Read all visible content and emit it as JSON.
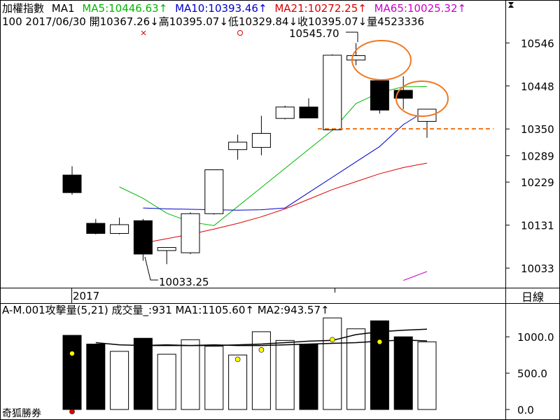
{
  "price_header": {
    "name": "加權指數",
    "ma_mode": "MA1",
    "items": [
      {
        "label": "MA5:10446.63",
        "arrow": "↑",
        "color": "#00b800"
      },
      {
        "label": "MA10:10393.46",
        "arrow": "↑",
        "color": "#0000cc"
      },
      {
        "label": "MA21:10272.25",
        "arrow": "↑",
        "color": "#dd0000"
      },
      {
        "label": "MA65:10025.32",
        "arrow": "↑",
        "color": "#cc00cc"
      }
    ],
    "scroll_icon": "scroll-arrows-icon"
  },
  "info_line": {
    "period": "100",
    "date": "2017/06/30",
    "segments": [
      {
        "label": "開",
        "value": "10367.26",
        "arrow": "↓"
      },
      {
        "label": "高",
        "value": "10395.07",
        "arrow": "↓"
      },
      {
        "label": "低",
        "value": "10329.84",
        "arrow": "↓"
      },
      {
        "label": "收",
        "value": "10395.07",
        "arrow": "↓"
      },
      {
        "label": "量",
        "value": "4523336",
        "arrow": ""
      }
    ]
  },
  "price_axis": {
    "ticks": [
      "10546",
      "10448",
      "10350",
      "10289",
      "10229",
      "10131",
      "10033"
    ],
    "values": [
      10546,
      10448,
      10350,
      10289,
      10229,
      10131,
      10033
    ]
  },
  "annotations": {
    "high_label": "10545.70",
    "low_label": "10033.25",
    "year_label": "2017",
    "period_label": "日線"
  },
  "markers": {
    "cross_icon": "cross-marker-icon",
    "circle_icon": "circle-marker-icon"
  },
  "volume_header": {
    "text": "A-M.001攻擊量(5,21) 成交量_:931",
    "items": [
      {
        "label": "MA1:1105.60",
        "arrow": "↑"
      },
      {
        "label": "MA2:943.57",
        "arrow": "↑"
      }
    ]
  },
  "volume_axis": {
    "ticks": [
      "1000.0",
      "500.0",
      "0.0"
    ],
    "values": [
      1000,
      500,
      0
    ]
  },
  "watermark": "奇狐勝券",
  "colors": {
    "ma5": "#00b800",
    "ma10": "#0000cc",
    "ma21": "#dd0000",
    "ma65": "#cc00cc",
    "highlight": "#f07820",
    "up_candle": "#ffffff",
    "down_candle": "#000000"
  },
  "chart_data": {
    "type": "candlestick",
    "price_range": [
      9990,
      10580
    ],
    "volume_range": [
      0,
      1300
    ],
    "candles": [
      {
        "o": 10205,
        "h": 10265,
        "l": 10200,
        "c": 10245,
        "down": true,
        "vol": 1020
      },
      {
        "o": 10135,
        "h": 10145,
        "l": 10110,
        "c": 10112,
        "down": true,
        "vol": 900
      },
      {
        "o": 10112,
        "h": 10148,
        "l": 10110,
        "c": 10132,
        "down": false,
        "vol": 800
      },
      {
        "o": 10141,
        "h": 10145,
        "l": 10050,
        "c": 10065,
        "down": true,
        "vol": 980
      },
      {
        "o": 10073,
        "h": 10080,
        "l": 10042,
        "c": 10080,
        "down": false,
        "vol": 760
      },
      {
        "o": 10068,
        "h": 10160,
        "l": 10065,
        "c": 10157,
        "down": false,
        "vol": 960
      },
      {
        "o": 10157,
        "h": 10258,
        "l": 10155,
        "c": 10257,
        "down": false,
        "vol": 870
      },
      {
        "o": 10303,
        "h": 10337,
        "l": 10280,
        "c": 10320,
        "down": false,
        "vol": 750
      },
      {
        "o": 10308,
        "h": 10380,
        "l": 10290,
        "c": 10340,
        "down": false,
        "vol": 1070
      },
      {
        "o": 10374,
        "h": 10403,
        "l": 10372,
        "c": 10400,
        "down": false,
        "vol": 950
      },
      {
        "o": 10400,
        "h": 10420,
        "l": 10375,
        "c": 10375,
        "down": true,
        "vol": 900
      },
      {
        "o": 10348,
        "h": 10520,
        "l": 10348,
        "c": 10518,
        "down": false,
        "vol": 1260
      },
      {
        "o": 10507,
        "h": 10545.7,
        "l": 10495,
        "c": 10517,
        "down": false,
        "vol": 1110
      },
      {
        "o": 10460,
        "h": 10460,
        "l": 10385,
        "c": 10393,
        "down": true,
        "vol": 1220
      },
      {
        "o": 10438,
        "h": 10470,
        "l": 10395,
        "c": 10420,
        "down": true,
        "vol": 1000
      },
      {
        "o": 10367.26,
        "h": 10395.07,
        "l": 10329.84,
        "c": 10395.07,
        "down": false,
        "vol": 931
      }
    ],
    "ma5": [
      null,
      10218,
      10192,
      10158,
      10138,
      10130,
      null,
      null,
      null,
      null,
      10347,
      10408,
      10433,
      10446,
      10446.63
    ],
    "ma10": [
      10170,
      10168,
      10167,
      10166,
      10165,
      10166,
      10170,
      null,
      null,
      null,
      10310,
      10360,
      10393.46
    ],
    "ma21": [
      10090,
      10100,
      10110,
      10122,
      10135,
      10150,
      10168,
      10190,
      10212,
      10230,
      10248,
      10262,
      10272.25
    ],
    "ma65": [
      10005,
      10025.32
    ],
    "vol_ma1": [
      920,
      890,
      880,
      890,
      880,
      880,
      890,
      900,
      920,
      940,
      950,
      1030,
      1070,
      1090,
      1105.6
    ],
    "vol_ma2": [
      880,
      880,
      880,
      890,
      880,
      880,
      890,
      900,
      910,
      920,
      940,
      955,
      943.57
    ],
    "vol_dots": [
      {
        "i": 0,
        "v": 770,
        "color": "#ffff00"
      },
      {
        "i": 7,
        "v": 690,
        "color": "#ffff00"
      },
      {
        "i": 8,
        "v": 820,
        "color": "#ffff00"
      },
      {
        "i": 11,
        "v": 960,
        "color": "#ffff00"
      },
      {
        "i": 13,
        "v": 930,
        "color": "#ffff00"
      },
      {
        "i": 0,
        "v": 0,
        "color": "#dd0000"
      }
    ]
  }
}
